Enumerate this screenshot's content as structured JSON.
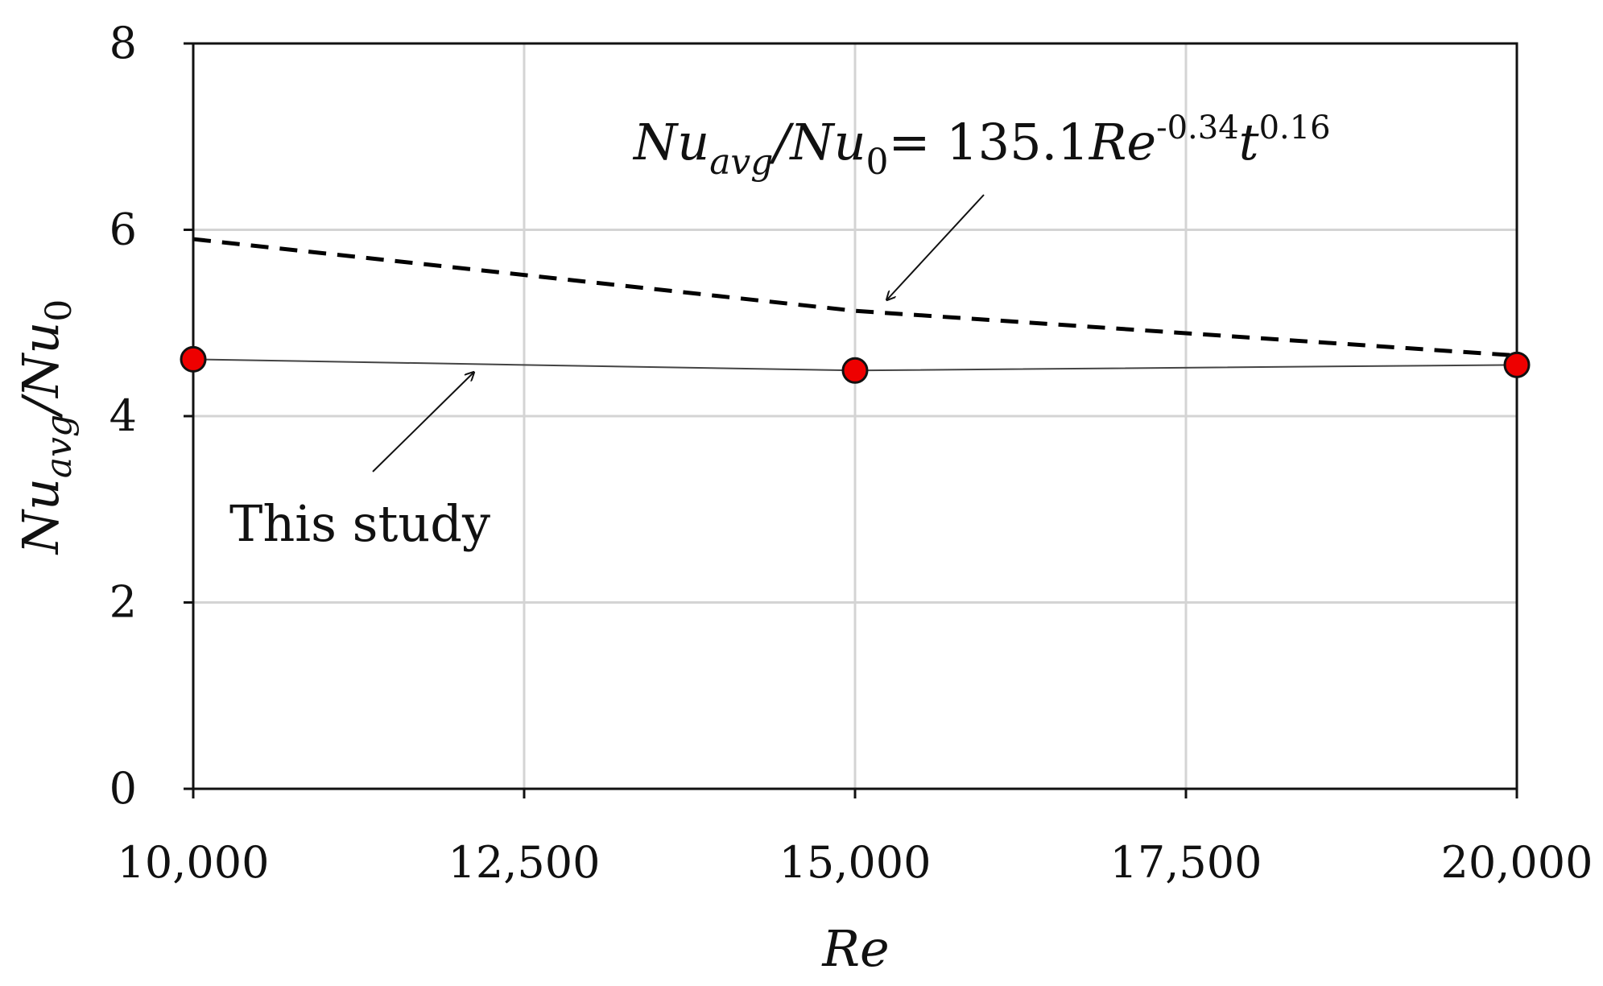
{
  "chart_data": {
    "type": "line",
    "xlabel": "Re",
    "ylabel_main": "Nu",
    "ylabel_sub": "avg",
    "ylabel_slash": "/Nu",
    "ylabel_sub2": "0",
    "xlim": [
      10000,
      20000
    ],
    "ylim": [
      0,
      8
    ],
    "x_ticks": [
      10000,
      12500,
      15000,
      17500,
      20000
    ],
    "x_tick_labels": [
      "10,000",
      "12,500",
      "15,000",
      "17,500",
      "20,000"
    ],
    "y_ticks": [
      0,
      2,
      4,
      6,
      8
    ],
    "y_tick_labels": [
      "0",
      "2",
      "4",
      "6",
      "8"
    ],
    "grid": true,
    "series": [
      {
        "name": "This study",
        "style": "solid line with markers",
        "color": "#444444",
        "marker_color": "#ee0000",
        "x": [
          10000,
          15000,
          20000
        ],
        "y": [
          4.61,
          4.49,
          4.55
        ]
      },
      {
        "name": "Nuavg/Nu0 = 135.1Re^-0.34 t^0.16",
        "style": "dashed",
        "color": "#000000",
        "x": [
          10000,
          15000,
          20000
        ],
        "y": [
          5.9,
          5.13,
          4.65
        ]
      }
    ],
    "annotations": {
      "this_study": "This study",
      "corr_nu": "Nu",
      "corr_avg": "avg",
      "corr_slash_nu": "/Nu",
      "corr_zero": "0",
      "corr_equals": "= 135.1",
      "corr_re": "Re",
      "corr_exp1": "-0.34",
      "corr_t": "t",
      "corr_exp2": "0.16"
    }
  }
}
